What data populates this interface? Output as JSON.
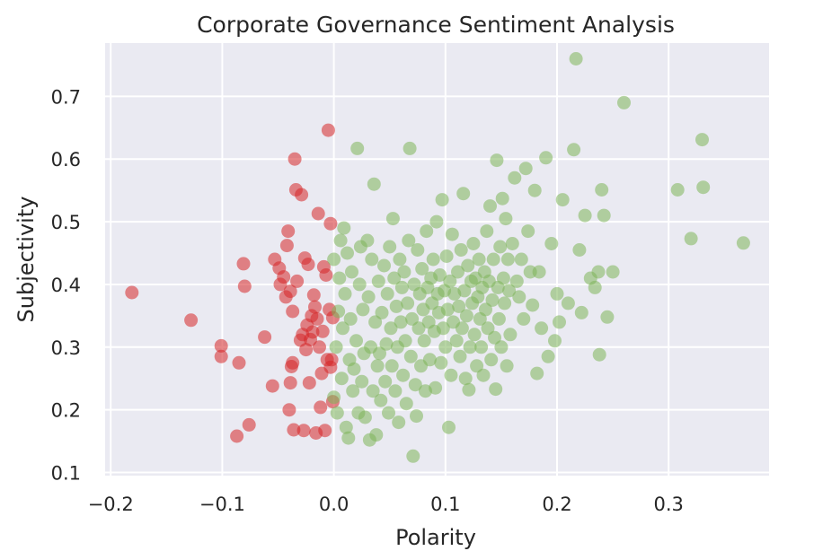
{
  "chart_data": {
    "type": "scatter",
    "title": "Corporate Governance Sentiment Analysis",
    "xlabel": "Polarity",
    "ylabel": "Subjectivity",
    "xlim": [
      -0.205,
      0.39
    ],
    "ylim": [
      0.095,
      0.785
    ],
    "xticks": [
      -0.2,
      -0.1,
      0.0,
      0.1,
      0.2,
      0.3
    ],
    "xtick_labels": [
      "−0.2",
      "−0.1",
      "0.0",
      "0.1",
      "0.2",
      "0.3"
    ],
    "yticks": [
      0.1,
      0.2,
      0.3,
      0.4,
      0.5,
      0.6,
      0.7
    ],
    "ytick_labels": [
      "0.1",
      "0.2",
      "0.3",
      "0.4",
      "0.5",
      "0.6",
      "0.7"
    ],
    "grid": true,
    "background": "#EAEAF2",
    "series": [
      {
        "color": "#D62728",
        "points": [
          [
            -0.181,
            0.387
          ],
          [
            -0.128,
            0.343
          ],
          [
            -0.101,
            0.302
          ],
          [
            -0.101,
            0.285
          ],
          [
            -0.087,
            0.158
          ],
          [
            -0.085,
            0.275
          ],
          [
            -0.081,
            0.433
          ],
          [
            -0.08,
            0.397
          ],
          [
            -0.076,
            0.176
          ],
          [
            -0.062,
            0.316
          ],
          [
            -0.055,
            0.238
          ],
          [
            -0.053,
            0.44
          ],
          [
            -0.049,
            0.426
          ],
          [
            -0.048,
            0.4
          ],
          [
            -0.045,
            0.412
          ],
          [
            -0.043,
            0.38
          ],
          [
            -0.042,
            0.462
          ],
          [
            -0.041,
            0.485
          ],
          [
            -0.04,
            0.2
          ],
          [
            -0.039,
            0.389
          ],
          [
            -0.039,
            0.243
          ],
          [
            -0.038,
            0.269
          ],
          [
            -0.037,
            0.357
          ],
          [
            -0.037,
            0.275
          ],
          [
            -0.036,
            0.168
          ],
          [
            -0.035,
            0.6
          ],
          [
            -0.034,
            0.551
          ],
          [
            -0.033,
            0.405
          ],
          [
            -0.03,
            0.311
          ],
          [
            -0.029,
            0.543
          ],
          [
            -0.028,
            0.32
          ],
          [
            -0.027,
            0.167
          ],
          [
            -0.026,
            0.442
          ],
          [
            -0.025,
            0.296
          ],
          [
            -0.024,
            0.335
          ],
          [
            -0.023,
            0.432
          ],
          [
            -0.022,
            0.243
          ],
          [
            -0.021,
            0.312
          ],
          [
            -0.02,
            0.35
          ],
          [
            -0.019,
            0.324
          ],
          [
            -0.018,
            0.383
          ],
          [
            -0.017,
            0.364
          ],
          [
            -0.016,
            0.163
          ],
          [
            -0.015,
            0.345
          ],
          [
            -0.014,
            0.513
          ],
          [
            -0.013,
            0.3
          ],
          [
            -0.012,
            0.204
          ],
          [
            -0.011,
            0.258
          ],
          [
            -0.01,
            0.325
          ],
          [
            -0.009,
            0.428
          ],
          [
            -0.008,
            0.167
          ],
          [
            -0.007,
            0.415
          ],
          [
            -0.006,
            0.28
          ],
          [
            -0.005,
            0.646
          ],
          [
            -0.004,
            0.36
          ],
          [
            -0.003,
            0.497
          ],
          [
            -0.002,
            0.28
          ],
          [
            -0.001,
            0.347
          ],
          [
            -0.001,
            0.213
          ],
          [
            -0.003,
            0.268
          ]
        ]
      },
      {
        "color": "#7EB55A",
        "points": [
          [
            0.0,
            0.44
          ],
          [
            0.0,
            0.22
          ],
          [
            0.002,
            0.3
          ],
          [
            0.003,
            0.195
          ],
          [
            0.004,
            0.357
          ],
          [
            0.005,
            0.41
          ],
          [
            0.006,
            0.47
          ],
          [
            0.007,
            0.25
          ],
          [
            0.008,
            0.33
          ],
          [
            0.009,
            0.49
          ],
          [
            0.01,
            0.385
          ],
          [
            0.011,
            0.172
          ],
          [
            0.012,
            0.45
          ],
          [
            0.013,
            0.155
          ],
          [
            0.014,
            0.28
          ],
          [
            0.015,
            0.345
          ],
          [
            0.016,
            0.42
          ],
          [
            0.017,
            0.23
          ],
          [
            0.018,
            0.265
          ],
          [
            0.02,
            0.31
          ],
          [
            0.021,
            0.617
          ],
          [
            0.022,
            0.195
          ],
          [
            0.023,
            0.4
          ],
          [
            0.024,
            0.46
          ],
          [
            0.025,
            0.245
          ],
          [
            0.026,
            0.36
          ],
          [
            0.027,
            0.29
          ],
          [
            0.028,
            0.188
          ],
          [
            0.03,
            0.47
          ],
          [
            0.031,
            0.38
          ],
          [
            0.032,
            0.152
          ],
          [
            0.033,
            0.3
          ],
          [
            0.034,
            0.44
          ],
          [
            0.035,
            0.23
          ],
          [
            0.036,
            0.56
          ],
          [
            0.037,
            0.34
          ],
          [
            0.038,
            0.16
          ],
          [
            0.039,
            0.27
          ],
          [
            0.04,
            0.405
          ],
          [
            0.041,
            0.29
          ],
          [
            0.042,
            0.215
          ],
          [
            0.043,
            0.355
          ],
          [
            0.045,
            0.43
          ],
          [
            0.046,
            0.245
          ],
          [
            0.047,
            0.305
          ],
          [
            0.048,
            0.385
          ],
          [
            0.049,
            0.195
          ],
          [
            0.05,
            0.46
          ],
          [
            0.051,
            0.33
          ],
          [
            0.052,
            0.27
          ],
          [
            0.053,
            0.505
          ],
          [
            0.054,
            0.41
          ],
          [
            0.055,
            0.23
          ],
          [
            0.056,
            0.365
          ],
          [
            0.057,
            0.3
          ],
          [
            0.058,
            0.18
          ],
          [
            0.059,
            0.44
          ],
          [
            0.06,
            0.34
          ],
          [
            0.061,
            0.395
          ],
          [
            0.062,
            0.255
          ],
          [
            0.063,
            0.42
          ],
          [
            0.064,
            0.31
          ],
          [
            0.065,
            0.21
          ],
          [
            0.066,
            0.37
          ],
          [
            0.067,
            0.47
          ],
          [
            0.068,
            0.617
          ],
          [
            0.069,
            0.285
          ],
          [
            0.07,
            0.345
          ],
          [
            0.071,
            0.126
          ],
          [
            0.072,
            0.4
          ],
          [
            0.073,
            0.24
          ],
          [
            0.074,
            0.19
          ],
          [
            0.075,
            0.455
          ],
          [
            0.076,
            0.33
          ],
          [
            0.077,
            0.385
          ],
          [
            0.078,
            0.27
          ],
          [
            0.079,
            0.425
          ],
          [
            0.08,
            0.36
          ],
          [
            0.081,
            0.31
          ],
          [
            0.082,
            0.23
          ],
          [
            0.083,
            0.485
          ],
          [
            0.084,
            0.395
          ],
          [
            0.085,
            0.34
          ],
          [
            0.086,
            0.28
          ],
          [
            0.087,
            0.41
          ],
          [
            0.088,
            0.37
          ],
          [
            0.089,
            0.44
          ],
          [
            0.09,
            0.325
          ],
          [
            0.091,
            0.235
          ],
          [
            0.092,
            0.5
          ],
          [
            0.093,
            0.385
          ],
          [
            0.094,
            0.355
          ],
          [
            0.095,
            0.415
          ],
          [
            0.096,
            0.275
          ],
          [
            0.097,
            0.535
          ],
          [
            0.098,
            0.33
          ],
          [
            0.099,
            0.39
          ],
          [
            0.1,
            0.3
          ],
          [
            0.101,
            0.445
          ],
          [
            0.102,
            0.36
          ],
          [
            0.103,
            0.172
          ],
          [
            0.104,
            0.405
          ],
          [
            0.105,
            0.255
          ],
          [
            0.106,
            0.48
          ],
          [
            0.107,
            0.34
          ],
          [
            0.108,
            0.385
          ],
          [
            0.11,
            0.31
          ],
          [
            0.111,
            0.42
          ],
          [
            0.112,
            0.365
          ],
          [
            0.113,
            0.285
          ],
          [
            0.114,
            0.455
          ],
          [
            0.115,
            0.33
          ],
          [
            0.116,
            0.545
          ],
          [
            0.117,
            0.39
          ],
          [
            0.118,
            0.25
          ],
          [
            0.119,
            0.35
          ],
          [
            0.12,
            0.43
          ],
          [
            0.121,
            0.232
          ],
          [
            0.122,
            0.3
          ],
          [
            0.123,
            0.405
          ],
          [
            0.124,
            0.37
          ],
          [
            0.125,
            0.465
          ],
          [
            0.126,
            0.32
          ],
          [
            0.127,
            0.41
          ],
          [
            0.128,
            0.27
          ],
          [
            0.129,
            0.38
          ],
          [
            0.13,
            0.44
          ],
          [
            0.131,
            0.345
          ],
          [
            0.132,
            0.3
          ],
          [
            0.133,
            0.395
          ],
          [
            0.134,
            0.255
          ],
          [
            0.135,
            0.42
          ],
          [
            0.136,
            0.36
          ],
          [
            0.137,
            0.485
          ],
          [
            0.138,
            0.33
          ],
          [
            0.139,
            0.405
          ],
          [
            0.14,
            0.525
          ],
          [
            0.141,
            0.28
          ],
          [
            0.142,
            0.375
          ],
          [
            0.143,
            0.44
          ],
          [
            0.144,
            0.315
          ],
          [
            0.145,
            0.233
          ],
          [
            0.146,
            0.598
          ],
          [
            0.147,
            0.395
          ],
          [
            0.148,
            0.345
          ],
          [
            0.149,
            0.46
          ],
          [
            0.15,
            0.3
          ],
          [
            0.151,
            0.537
          ],
          [
            0.152,
            0.41
          ],
          [
            0.153,
            0.37
          ],
          [
            0.154,
            0.505
          ],
          [
            0.155,
            0.27
          ],
          [
            0.156,
            0.44
          ],
          [
            0.157,
            0.39
          ],
          [
            0.158,
            0.32
          ],
          [
            0.16,
            0.465
          ],
          [
            0.162,
            0.57
          ],
          [
            0.164,
            0.405
          ],
          [
            0.166,
            0.38
          ],
          [
            0.168,
            0.44
          ],
          [
            0.17,
            0.345
          ],
          [
            0.172,
            0.585
          ],
          [
            0.174,
            0.485
          ],
          [
            0.176,
            0.42
          ],
          [
            0.178,
            0.367
          ],
          [
            0.18,
            0.55
          ],
          [
            0.182,
            0.258
          ],
          [
            0.184,
            0.42
          ],
          [
            0.186,
            0.33
          ],
          [
            0.19,
            0.602
          ],
          [
            0.192,
            0.285
          ],
          [
            0.195,
            0.465
          ],
          [
            0.198,
            0.31
          ],
          [
            0.2,
            0.385
          ],
          [
            0.202,
            0.34
          ],
          [
            0.205,
            0.535
          ],
          [
            0.21,
            0.37
          ],
          [
            0.215,
            0.615
          ],
          [
            0.217,
            0.76
          ],
          [
            0.22,
            0.455
          ],
          [
            0.222,
            0.355
          ],
          [
            0.225,
            0.51
          ],
          [
            0.23,
            0.41
          ],
          [
            0.234,
            0.395
          ],
          [
            0.237,
            0.42
          ],
          [
            0.238,
            0.288
          ],
          [
            0.24,
            0.551
          ],
          [
            0.242,
            0.51
          ],
          [
            0.245,
            0.348
          ],
          [
            0.25,
            0.42
          ],
          [
            0.26,
            0.69
          ],
          [
            0.308,
            0.551
          ],
          [
            0.32,
            0.473
          ],
          [
            0.33,
            0.631
          ],
          [
            0.331,
            0.555
          ],
          [
            0.367,
            0.466
          ]
        ]
      }
    ]
  }
}
